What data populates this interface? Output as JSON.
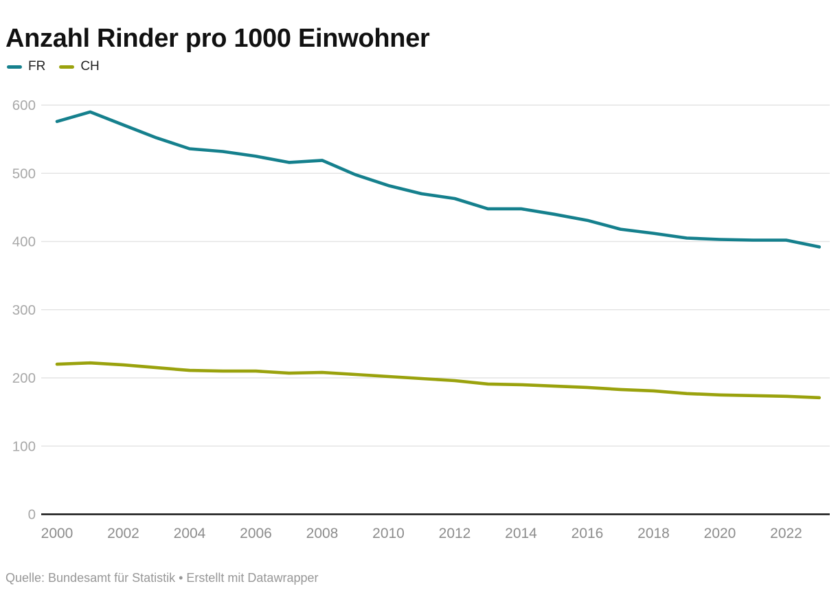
{
  "header": {
    "title": "Anzahl Rinder pro 1000 Einwohner"
  },
  "legend": {
    "items": [
      {
        "label": "FR",
        "color": "#15808d"
      },
      {
        "label": "CH",
        "color": "#9aa20d"
      }
    ]
  },
  "footer": {
    "source": "Quelle: Bundesamt für Statistik • Erstellt mit Datawrapper"
  },
  "chart_data": {
    "type": "line",
    "title": "Anzahl Rinder pro 1000 Einwohner",
    "x": [
      2000,
      2001,
      2002,
      2003,
      2004,
      2005,
      2006,
      2007,
      2008,
      2009,
      2010,
      2011,
      2012,
      2013,
      2014,
      2015,
      2016,
      2017,
      2018,
      2019,
      2020,
      2021,
      2022,
      2023
    ],
    "series": [
      {
        "name": "FR",
        "color": "#15808d",
        "values": [
          576,
          590,
          571,
          552,
          536,
          532,
          525,
          516,
          519,
          498,
          482,
          470,
          463,
          448,
          448,
          440,
          431,
          418,
          412,
          405,
          403,
          402,
          402,
          392
        ]
      },
      {
        "name": "CH",
        "color": "#9aa20d",
        "values": [
          220,
          222,
          219,
          215,
          211,
          210,
          210,
          207,
          208,
          205,
          202,
          199,
          196,
          191,
          190,
          188,
          186,
          183,
          181,
          177,
          175,
          174,
          173,
          171
        ]
      }
    ],
    "xlabel": "",
    "ylabel": "",
    "ylim": [
      0,
      600
    ],
    "yticks": [
      0,
      100,
      200,
      300,
      400,
      500,
      600
    ],
    "xticks": [
      2000,
      2002,
      2004,
      2006,
      2008,
      2010,
      2012,
      2014,
      2016,
      2018,
      2020,
      2022
    ],
    "grid": "horizontal",
    "legend_position": "top-left",
    "source": "Quelle: Bundesamt für Statistik • Erstellt mit Datawrapper"
  },
  "style": {
    "grid_color": "#e4e4e4",
    "axis_color": "#161616",
    "ytick_color": "#a8a8a8",
    "xtick_color": "#8c8c8c"
  }
}
